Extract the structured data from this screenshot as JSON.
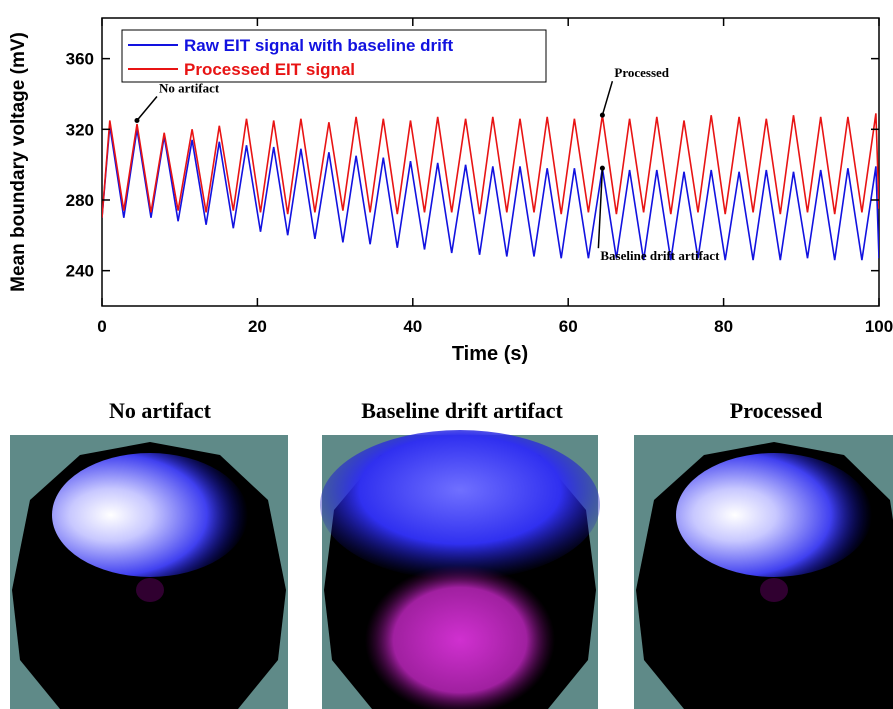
{
  "chart_data": {
    "type": "line",
    "xlabel": "Time (s)",
    "ylabel": "Mean boundary voltage (mV)",
    "x": [
      0,
      1.0,
      2.8,
      4.5,
      6.3,
      8.0,
      9.8,
      11.6,
      13.4,
      15.1,
      16.9,
      18.6,
      20.4,
      22.1,
      23.9,
      25.6,
      27.4,
      29.2,
      31.0,
      32.7,
      34.5,
      36.2,
      38.0,
      39.7,
      41.5,
      43.2,
      45.0,
      46.8,
      48.6,
      50.3,
      52.1,
      53.8,
      55.6,
      57.3,
      59.1,
      60.8,
      62.6,
      64.4,
      66.2,
      67.9,
      69.7,
      71.4,
      73.2,
      74.9,
      76.7,
      78.4,
      80.2,
      82.0,
      83.8,
      85.5,
      87.3,
      89.0,
      90.8,
      92.5,
      94.3,
      96.0,
      97.8,
      99.6,
      100
    ],
    "series": [
      {
        "name": "Raw EIT signal with baseline drift",
        "color": "#1212e0",
        "values": [
          270,
          322,
          270,
          320,
          270,
          316,
          268,
          314,
          266,
          313,
          264,
          311,
          262,
          310,
          260,
          309,
          258,
          307,
          256,
          305,
          255,
          304,
          253,
          302,
          252,
          301,
          250,
          300,
          249,
          299,
          248,
          299,
          248,
          298,
          247,
          298,
          247,
          298,
          247,
          297,
          246,
          297,
          246,
          296,
          247,
          297,
          246,
          296,
          246,
          297,
          246,
          296,
          247,
          297,
          246,
          298,
          246,
          299,
          247
        ]
      },
      {
        "name": "Processed EIT signal",
        "color": "#e81414",
        "values": [
          270,
          325,
          274,
          323,
          273,
          318,
          274,
          320,
          273,
          322,
          274,
          326,
          273,
          325,
          272,
          326,
          273,
          324,
          274,
          327,
          273,
          326,
          272,
          325,
          273,
          327,
          273,
          326,
          272,
          327,
          273,
          326,
          273,
          327,
          272,
          326,
          273,
          328,
          272,
          326,
          273,
          327,
          272,
          325,
          273,
          328,
          272,
          327,
          273,
          326,
          272,
          328,
          273,
          327,
          272,
          327,
          273,
          329,
          275
        ]
      }
    ],
    "xlim": [
      0,
      100
    ],
    "ylim": [
      220,
      383
    ],
    "xticks": [
      0,
      20,
      40,
      60,
      80,
      100
    ],
    "yticks": [
      240,
      280,
      320,
      360
    ],
    "legend": "upper left",
    "annotations": [
      {
        "text": "No artifact",
        "x": 4.5,
        "y": 325
      },
      {
        "text": "Processed",
        "x": 64.4,
        "y": 328
      },
      {
        "text": "Baseline drift artifact",
        "x": 64.4,
        "y": 298
      }
    ]
  },
  "panels": [
    {
      "title": "No artifact"
    },
    {
      "title": "Baseline drift artifact"
    },
    {
      "title": "Processed"
    }
  ]
}
